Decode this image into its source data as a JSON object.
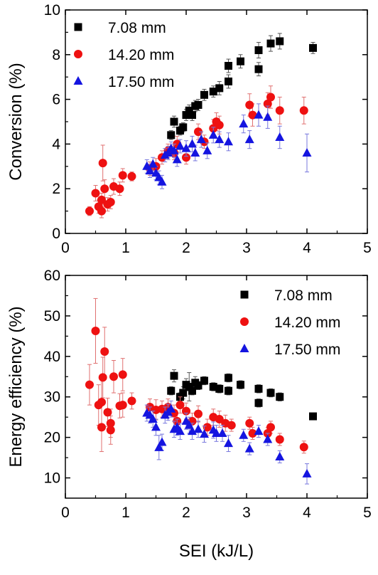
{
  "chart_data": [
    {
      "type": "scatter",
      "ylabel": "Conversion (%)",
      "xlabel": "",
      "xlim": [
        0,
        5
      ],
      "ylim": [
        0,
        10
      ],
      "xticks": [
        "0",
        "1",
        "2",
        "3",
        "4",
        "5"
      ],
      "yticks": [
        "0",
        "2",
        "4",
        "6",
        "8",
        "10"
      ],
      "grid": false,
      "legend_position": "top-left",
      "series": [
        {
          "name": "7.08 mm",
          "marker": "square",
          "color": "#000000",
          "error_color": "#555555",
          "points": [
            {
              "x": 1.75,
              "y": 4.4,
              "err": 0.2
            },
            {
              "x": 1.8,
              "y": 5.0,
              "err": 0.25
            },
            {
              "x": 1.9,
              "y": 4.6,
              "err": 0.2
            },
            {
              "x": 1.95,
              "y": 4.75,
              "err": 0.2
            },
            {
              "x": 2.0,
              "y": 5.3,
              "err": 0.25
            },
            {
              "x": 2.05,
              "y": 5.5,
              "err": 0.25
            },
            {
              "x": 2.1,
              "y": 5.3,
              "err": 0.25
            },
            {
              "x": 2.15,
              "y": 5.7,
              "err": 0.25
            },
            {
              "x": 2.2,
              "y": 5.75,
              "err": 0.25
            },
            {
              "x": 2.3,
              "y": 6.2,
              "err": 0.25
            },
            {
              "x": 2.45,
              "y": 6.35,
              "err": 0.25
            },
            {
              "x": 2.55,
              "y": 6.5,
              "err": 0.3
            },
            {
              "x": 2.7,
              "y": 6.8,
              "err": 0.3
            },
            {
              "x": 2.7,
              "y": 7.5,
              "err": 0.3
            },
            {
              "x": 2.9,
              "y": 7.7,
              "err": 0.3
            },
            {
              "x": 3.2,
              "y": 8.2,
              "err": 0.35
            },
            {
              "x": 3.2,
              "y": 7.35,
              "err": 0.3
            },
            {
              "x": 3.4,
              "y": 8.5,
              "err": 0.35
            },
            {
              "x": 3.55,
              "y": 8.6,
              "err": 0.35
            },
            {
              "x": 4.1,
              "y": 8.3,
              "err": 0.25
            }
          ]
        },
        {
          "name": "14.20 mm",
          "marker": "circle",
          "color": "#ee1111",
          "error_color": "#e07070",
          "points": [
            {
              "x": 0.4,
              "y": 1.0,
              "err": 0.2
            },
            {
              "x": 0.5,
              "y": 1.8,
              "err": 0.35
            },
            {
              "x": 0.55,
              "y": 1.2,
              "err": 0.3
            },
            {
              "x": 0.6,
              "y": 1.5,
              "err": 0.3
            },
            {
              "x": 0.6,
              "y": 1.0,
              "err": 0.3
            },
            {
              "x": 0.62,
              "y": 3.15,
              "err": 0.8
            },
            {
              "x": 0.65,
              "y": 2.0,
              "err": 0.4
            },
            {
              "x": 0.7,
              "y": 1.3,
              "err": 0.3
            },
            {
              "x": 0.75,
              "y": 1.4,
              "err": 0.3
            },
            {
              "x": 0.8,
              "y": 2.1,
              "err": 0.35
            },
            {
              "x": 0.9,
              "y": 2.0,
              "err": 0.3
            },
            {
              "x": 0.95,
              "y": 2.6,
              "err": 0.3
            },
            {
              "x": 1.1,
              "y": 2.55,
              "err": 0.2
            },
            {
              "x": 1.4,
              "y": 2.9,
              "err": 0.3
            },
            {
              "x": 1.5,
              "y": 3.0,
              "err": 0.35
            },
            {
              "x": 1.6,
              "y": 3.4,
              "err": 0.3
            },
            {
              "x": 1.7,
              "y": 3.7,
              "err": 0.3
            },
            {
              "x": 1.8,
              "y": 3.6,
              "err": 0.3
            },
            {
              "x": 1.85,
              "y": 4.0,
              "err": 0.35
            },
            {
              "x": 2.0,
              "y": 3.4,
              "err": 0.3
            },
            {
              "x": 2.2,
              "y": 4.55,
              "err": 0.35
            },
            {
              "x": 2.3,
              "y": 4.1,
              "err": 0.3
            },
            {
              "x": 2.45,
              "y": 4.7,
              "err": 0.4
            },
            {
              "x": 2.5,
              "y": 5.0,
              "err": 0.4
            },
            {
              "x": 2.55,
              "y": 4.85,
              "err": 0.4
            },
            {
              "x": 3.05,
              "y": 5.75,
              "err": 0.5
            },
            {
              "x": 3.1,
              "y": 5.3,
              "err": 0.5
            },
            {
              "x": 3.35,
              "y": 5.8,
              "err": 0.5
            },
            {
              "x": 3.4,
              "y": 6.1,
              "err": 0.5
            },
            {
              "x": 3.55,
              "y": 5.5,
              "err": 0.6
            },
            {
              "x": 3.95,
              "y": 5.5,
              "err": 0.6
            }
          ]
        },
        {
          "name": "17.50 mm",
          "marker": "triangle",
          "color": "#1515e0",
          "error_color": "#7777dd",
          "points": [
            {
              "x": 1.35,
              "y": 3.0,
              "err": 0.3
            },
            {
              "x": 1.4,
              "y": 2.8,
              "err": 0.3
            },
            {
              "x": 1.45,
              "y": 3.1,
              "err": 0.3
            },
            {
              "x": 1.5,
              "y": 2.7,
              "err": 0.3
            },
            {
              "x": 1.55,
              "y": 2.5,
              "err": 0.3
            },
            {
              "x": 1.6,
              "y": 2.3,
              "err": 0.3
            },
            {
              "x": 1.65,
              "y": 3.5,
              "err": 0.3
            },
            {
              "x": 1.7,
              "y": 3.6,
              "err": 0.3
            },
            {
              "x": 1.75,
              "y": 3.8,
              "err": 0.3
            },
            {
              "x": 1.8,
              "y": 3.7,
              "err": 0.3
            },
            {
              "x": 1.85,
              "y": 3.3,
              "err": 0.3
            },
            {
              "x": 1.9,
              "y": 3.9,
              "err": 0.3
            },
            {
              "x": 2.0,
              "y": 3.8,
              "err": 0.35
            },
            {
              "x": 2.1,
              "y": 4.0,
              "err": 0.35
            },
            {
              "x": 2.15,
              "y": 3.6,
              "err": 0.35
            },
            {
              "x": 2.25,
              "y": 4.2,
              "err": 0.35
            },
            {
              "x": 2.35,
              "y": 3.7,
              "err": 0.35
            },
            {
              "x": 2.45,
              "y": 4.4,
              "err": 0.35
            },
            {
              "x": 2.55,
              "y": 4.2,
              "err": 0.35
            },
            {
              "x": 2.7,
              "y": 4.1,
              "err": 0.4
            },
            {
              "x": 2.95,
              "y": 4.9,
              "err": 0.4
            },
            {
              "x": 3.05,
              "y": 4.2,
              "err": 0.4
            },
            {
              "x": 3.2,
              "y": 5.3,
              "err": 0.5
            },
            {
              "x": 3.35,
              "y": 5.2,
              "err": 0.5
            },
            {
              "x": 3.55,
              "y": 4.3,
              "err": 0.5
            },
            {
              "x": 4.0,
              "y": 3.6,
              "err": 0.85
            }
          ]
        }
      ]
    },
    {
      "type": "scatter",
      "ylabel": "Energy efficiency (%)",
      "xlabel": "SEI (kJ/L)",
      "xlim": [
        0,
        5
      ],
      "ylim": [
        5,
        60
      ],
      "xticks": [
        "0",
        "1",
        "2",
        "3",
        "4",
        "5"
      ],
      "yticks": [
        "10",
        "20",
        "30",
        "40",
        "50",
        "60"
      ],
      "grid": false,
      "legend_position": "top-right",
      "series": [
        {
          "name": "7.08 mm",
          "marker": "square",
          "color": "#000000",
          "error_color": "#555555",
          "points": [
            {
              "x": 1.75,
              "y": 31.5,
              "err": 1.0
            },
            {
              "x": 1.8,
              "y": 35.2,
              "err": 1.5
            },
            {
              "x": 1.9,
              "y": 30.0,
              "err": 1.0
            },
            {
              "x": 1.95,
              "y": 31.0,
              "err": 1.5
            },
            {
              "x": 2.0,
              "y": 33.0,
              "err": 1.5
            },
            {
              "x": 2.05,
              "y": 32.5,
              "err": 3.5
            },
            {
              "x": 2.1,
              "y": 31.5,
              "err": 1.0
            },
            {
              "x": 2.15,
              "y": 33.5,
              "err": 1.5
            },
            {
              "x": 2.2,
              "y": 32.8,
              "err": 1.0
            },
            {
              "x": 2.3,
              "y": 34.0,
              "err": 1.0
            },
            {
              "x": 2.45,
              "y": 32.5,
              "err": 1.0
            },
            {
              "x": 2.55,
              "y": 32.0,
              "err": 1.0
            },
            {
              "x": 2.7,
              "y": 34.7,
              "err": 1.0
            },
            {
              "x": 2.7,
              "y": 31.5,
              "err": 1.0
            },
            {
              "x": 2.9,
              "y": 33.0,
              "err": 1.0
            },
            {
              "x": 3.2,
              "y": 32.0,
              "err": 1.0
            },
            {
              "x": 3.2,
              "y": 28.5,
              "err": 1.0
            },
            {
              "x": 3.4,
              "y": 31.0,
              "err": 1.0
            },
            {
              "x": 3.55,
              "y": 30.0,
              "err": 1.0
            },
            {
              "x": 4.1,
              "y": 25.2,
              "err": 0.8
            }
          ]
        },
        {
          "name": "14.20 mm",
          "marker": "circle",
          "color": "#ee1111",
          "error_color": "#e07070",
          "points": [
            {
              "x": 0.4,
              "y": 33.0,
              "err": 5.0
            },
            {
              "x": 0.5,
              "y": 46.3,
              "err": 8.0
            },
            {
              "x": 0.55,
              "y": 28.0,
              "err": 5.0
            },
            {
              "x": 0.6,
              "y": 28.7,
              "err": 6.0
            },
            {
              "x": 0.6,
              "y": 22.5,
              "err": 6.0
            },
            {
              "x": 0.62,
              "y": 34.8,
              "err": 5.0
            },
            {
              "x": 0.65,
              "y": 41.2,
              "err": 6.0
            },
            {
              "x": 0.7,
              "y": 26.2,
              "err": 3.5
            },
            {
              "x": 0.75,
              "y": 23.5,
              "err": 3.5
            },
            {
              "x": 0.75,
              "y": 21.8,
              "err": 3.5
            },
            {
              "x": 0.8,
              "y": 35.0,
              "err": 4.0
            },
            {
              "x": 0.9,
              "y": 27.8,
              "err": 3.0
            },
            {
              "x": 0.95,
              "y": 35.5,
              "err": 4.0
            },
            {
              "x": 0.95,
              "y": 28.0,
              "err": 3.0
            },
            {
              "x": 1.1,
              "y": 29.0,
              "err": 2.0
            },
            {
              "x": 1.4,
              "y": 27.5,
              "err": 2.0
            },
            {
              "x": 1.5,
              "y": 26.8,
              "err": 2.5
            },
            {
              "x": 1.6,
              "y": 27.0,
              "err": 2.0
            },
            {
              "x": 1.7,
              "y": 27.5,
              "err": 2.0
            },
            {
              "x": 1.8,
              "y": 26.0,
              "err": 2.0
            },
            {
              "x": 1.85,
              "y": 24.0,
              "err": 2.0
            },
            {
              "x": 1.9,
              "y": 28.0,
              "err": 2.0
            },
            {
              "x": 2.0,
              "y": 26.5,
              "err": 2.0
            },
            {
              "x": 2.1,
              "y": 24.0,
              "err": 2.0
            },
            {
              "x": 2.2,
              "y": 25.8,
              "err": 2.0
            },
            {
              "x": 2.35,
              "y": 22.5,
              "err": 2.0
            },
            {
              "x": 2.45,
              "y": 25.0,
              "err": 2.0
            },
            {
              "x": 2.55,
              "y": 24.5,
              "err": 2.0
            },
            {
              "x": 2.65,
              "y": 23.5,
              "err": 2.0
            },
            {
              "x": 2.75,
              "y": 23.0,
              "err": 1.5
            },
            {
              "x": 3.05,
              "y": 23.5,
              "err": 1.5
            },
            {
              "x": 3.1,
              "y": 21.0,
              "err": 1.5
            },
            {
              "x": 3.35,
              "y": 21.0,
              "err": 1.5
            },
            {
              "x": 3.4,
              "y": 22.5,
              "err": 1.5
            },
            {
              "x": 3.55,
              "y": 19.5,
              "err": 1.5
            },
            {
              "x": 3.95,
              "y": 17.6,
              "err": 1.5
            }
          ]
        },
        {
          "name": "17.50 mm",
          "marker": "triangle",
          "color": "#1515e0",
          "error_color": "#7777dd",
          "points": [
            {
              "x": 1.35,
              "y": 26.0,
              "err": 2.0
            },
            {
              "x": 1.4,
              "y": 25.5,
              "err": 2.0
            },
            {
              "x": 1.45,
              "y": 24.5,
              "err": 2.0
            },
            {
              "x": 1.5,
              "y": 22.5,
              "err": 2.0
            },
            {
              "x": 1.55,
              "y": 17.5,
              "err": 3.0
            },
            {
              "x": 1.6,
              "y": 18.8,
              "err": 2.0
            },
            {
              "x": 1.65,
              "y": 25.5,
              "err": 2.0
            },
            {
              "x": 1.7,
              "y": 26.2,
              "err": 2.0
            },
            {
              "x": 1.75,
              "y": 27.0,
              "err": 2.0
            },
            {
              "x": 1.8,
              "y": 22.0,
              "err": 2.0
            },
            {
              "x": 1.85,
              "y": 22.5,
              "err": 2.0
            },
            {
              "x": 1.9,
              "y": 21.5,
              "err": 2.0
            },
            {
              "x": 2.0,
              "y": 24.0,
              "err": 2.0
            },
            {
              "x": 2.05,
              "y": 23.0,
              "err": 2.0
            },
            {
              "x": 2.1,
              "y": 21.5,
              "err": 2.0
            },
            {
              "x": 2.2,
              "y": 22.0,
              "err": 2.0
            },
            {
              "x": 2.3,
              "y": 20.8,
              "err": 2.0
            },
            {
              "x": 2.45,
              "y": 21.8,
              "err": 2.0
            },
            {
              "x": 2.5,
              "y": 21.0,
              "err": 2.0
            },
            {
              "x": 2.6,
              "y": 21.0,
              "err": 2.0
            },
            {
              "x": 2.7,
              "y": 18.5,
              "err": 2.0
            },
            {
              "x": 2.95,
              "y": 20.5,
              "err": 1.5
            },
            {
              "x": 3.05,
              "y": 17.2,
              "err": 1.5
            },
            {
              "x": 3.2,
              "y": 21.5,
              "err": 1.5
            },
            {
              "x": 3.35,
              "y": 19.5,
              "err": 1.5
            },
            {
              "x": 3.55,
              "y": 15.2,
              "err": 1.5
            },
            {
              "x": 4.0,
              "y": 11.0,
              "err": 2.5
            }
          ]
        }
      ]
    }
  ]
}
